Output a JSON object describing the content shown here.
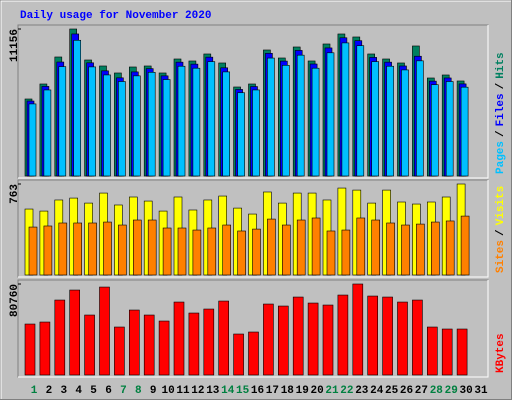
{
  "title": "Daily usage for November 2020",
  "legend_separator": "/",
  "chart_data": [
    {
      "type": "bar",
      "ylim": [
        0,
        11156
      ],
      "yticks": [
        11156
      ],
      "series": [
        {
          "name": "Hits",
          "color": "#008060",
          "values": [
            5844,
            6983,
            9032,
            11156,
            8804,
            8349,
            7818,
            8273,
            8349,
            7818,
            8880,
            8729,
            9260,
            8577,
            6755,
            6983,
            9563,
            8956,
            9791,
            8729,
            10019,
            10778,
            10550,
            9260,
            8880,
            8577,
            9867,
            7438,
            7666,
            7211,
            null
          ]
        },
        {
          "name": "Files",
          "color": "#0000ff",
          "values": [
            5690,
            6800,
            8650,
            10780,
            8590,
            7980,
            7450,
            7900,
            8150,
            7600,
            8640,
            8490,
            9020,
            8210,
            6570,
            6790,
            9310,
            8720,
            9530,
            8500,
            9720,
            10490,
            10270,
            9000,
            8640,
            8350,
            9090,
            7200,
            7440,
            6990,
            null
          ]
        },
        {
          "name": "Pages",
          "color": "#00c0ff",
          "values": [
            5470,
            6530,
            8300,
            10300,
            8280,
            7670,
            7170,
            7600,
            7870,
            7320,
            8330,
            8180,
            8680,
            7900,
            6320,
            6530,
            8950,
            8400,
            9170,
            8180,
            9350,
            10100,
            9890,
            8680,
            8330,
            8050,
            8740,
            6930,
            7170,
            6740,
            null
          ]
        }
      ]
    },
    {
      "type": "bar",
      "ylim": [
        0,
        763
      ],
      "yticks": [
        763
      ],
      "series": [
        {
          "name": "Visits",
          "color": "#ffff00",
          "values": [
            553,
            536,
            629,
            645,
            603,
            687,
            587,
            654,
            620,
            536,
            654,
            545,
            629,
            662,
            561,
            511,
            696,
            603,
            687,
            687,
            629,
            729,
            712,
            603,
            712,
            612,
            595,
            612,
            654,
            763,
            null
          ]
        },
        {
          "name": "Sites",
          "color": "#ff8000",
          "values": [
            402,
            411,
            436,
            436,
            436,
            444,
            419,
            461,
            461,
            394,
            394,
            377,
            394,
            419,
            369,
            385,
            469,
            419,
            461,
            478,
            369,
            377,
            478,
            461,
            436,
            419,
            427,
            444,
            453,
            494,
            null
          ]
        }
      ]
    },
    {
      "type": "bar",
      "ylim": [
        0,
        80760
      ],
      "yticks": [
        80760
      ],
      "categories": [
        "1",
        "2",
        "3",
        "4",
        "5",
        "6",
        "7",
        "8",
        "9",
        "10",
        "11",
        "12",
        "13",
        "14",
        "15",
        "16",
        "17",
        "18",
        "19",
        "20",
        "21",
        "22",
        "23",
        "24",
        "25",
        "26",
        "27",
        "28",
        "29",
        "30",
        "31"
      ],
      "category_colors": [
        "#008040",
        "#000000",
        "#000000",
        "#000000",
        "#000000",
        "#000000",
        "#008040",
        "#008040",
        "#000000",
        "#000000",
        "#000000",
        "#000000",
        "#000000",
        "#008040",
        "#008040",
        "#000000",
        "#000000",
        "#000000",
        "#000000",
        "#000000",
        "#008040",
        "#008040",
        "#000000",
        "#000000",
        "#000000",
        "#000000",
        "#000000",
        "#008040",
        "#008040",
        "#000000",
        "#000000"
      ],
      "series": [
        {
          "name": "KBytes",
          "color": "#ff0000",
          "values": [
            45237,
            47011,
            66525,
            75395,
            53220,
            78056,
            42576,
            57655,
            53220,
            47898,
            64751,
            54994,
            58542,
            65638,
            36367,
            38141,
            62977,
            61203,
            69186,
            63864,
            62090,
            70960,
            80760,
            70073,
            69186,
            64751,
            66525,
            42576,
            40802,
            40802,
            null
          ]
        }
      ]
    }
  ]
}
